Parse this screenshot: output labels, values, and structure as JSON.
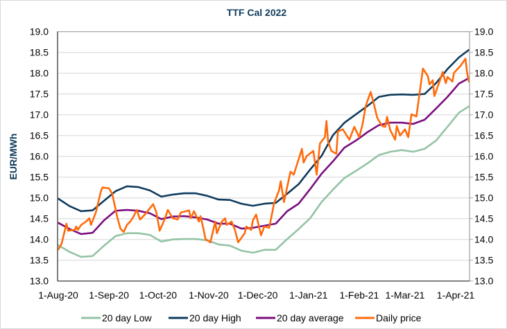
{
  "chart_data": {
    "type": "line",
    "title": "TTF Cal 2022",
    "ylabel": "EUR/MWh",
    "xlabel": "",
    "ylim": [
      13.0,
      19.0
    ],
    "xlim": [
      "2020-08-01",
      "2021-04-09"
    ],
    "y_ticks": [
      "13.0",
      "13.5",
      "14.0",
      "14.5",
      "15.0",
      "15.5",
      "16.0",
      "16.5",
      "17.0",
      "17.5",
      "18.0",
      "18.5",
      "19.0"
    ],
    "x_ticks": [
      {
        "date": "2020-08-01",
        "label": "1-Aug-20"
      },
      {
        "date": "2020-09-01",
        "label": "1-Sep-20"
      },
      {
        "date": "2020-10-01",
        "label": "1-Oct-20"
      },
      {
        "date": "2020-11-01",
        "label": "1-Nov-20"
      },
      {
        "date": "2020-12-01",
        "label": "1-Dec-20"
      },
      {
        "date": "2021-01-01",
        "label": "1-Jan-21"
      },
      {
        "date": "2021-02-01",
        "label": "1-Feb-21"
      },
      {
        "date": "2021-03-01",
        "label": "1-Mar-21"
      },
      {
        "date": "2021-04-01",
        "label": "1-Apr-21"
      }
    ],
    "secondary_y_axis": true,
    "grid": "horizontal",
    "legend_position": "bottom",
    "series": [
      {
        "name": "20 day Low",
        "color": "#93c3a5",
        "points": [
          [
            "2020-08-01",
            13.86
          ],
          [
            "2020-08-08",
            13.7
          ],
          [
            "2020-08-15",
            13.58
          ],
          [
            "2020-08-22",
            13.6
          ],
          [
            "2020-08-29",
            13.85
          ],
          [
            "2020-09-05",
            14.08
          ],
          [
            "2020-09-12",
            14.15
          ],
          [
            "2020-09-19",
            14.15
          ],
          [
            "2020-09-26",
            14.11
          ],
          [
            "2020-10-03",
            13.95
          ],
          [
            "2020-10-10",
            14.0
          ],
          [
            "2020-10-17",
            14.01
          ],
          [
            "2020-10-24",
            14.01
          ],
          [
            "2020-10-31",
            13.98
          ],
          [
            "2020-11-07",
            13.88
          ],
          [
            "2020-11-14",
            13.85
          ],
          [
            "2020-11-21",
            13.73
          ],
          [
            "2020-11-28",
            13.68
          ],
          [
            "2020-12-05",
            13.75
          ],
          [
            "2020-12-12",
            13.75
          ],
          [
            "2020-12-19",
            14.01
          ],
          [
            "2020-12-26",
            14.25
          ],
          [
            "2021-01-02",
            14.51
          ],
          [
            "2021-01-09",
            14.9
          ],
          [
            "2021-01-16",
            15.2
          ],
          [
            "2021-01-23",
            15.48
          ],
          [
            "2021-01-30",
            15.65
          ],
          [
            "2021-02-06",
            15.83
          ],
          [
            "2021-02-13",
            16.03
          ],
          [
            "2021-02-20",
            16.11
          ],
          [
            "2021-02-27",
            16.15
          ],
          [
            "2021-03-06",
            16.11
          ],
          [
            "2021-03-13",
            16.18
          ],
          [
            "2021-03-20",
            16.38
          ],
          [
            "2021-03-27",
            16.71
          ],
          [
            "2021-04-03",
            17.05
          ],
          [
            "2021-04-09",
            17.2
          ]
        ]
      },
      {
        "name": "20 day High",
        "color": "#0e3a5c",
        "points": [
          [
            "2020-08-01",
            14.98
          ],
          [
            "2020-08-08",
            14.8
          ],
          [
            "2020-08-15",
            14.68
          ],
          [
            "2020-08-22",
            14.7
          ],
          [
            "2020-08-29",
            14.93
          ],
          [
            "2020-09-05",
            15.16
          ],
          [
            "2020-09-12",
            15.28
          ],
          [
            "2020-09-19",
            15.26
          ],
          [
            "2020-09-26",
            15.18
          ],
          [
            "2020-10-03",
            15.03
          ],
          [
            "2020-10-10",
            15.08
          ],
          [
            "2020-10-17",
            15.11
          ],
          [
            "2020-10-24",
            15.11
          ],
          [
            "2020-10-31",
            15.05
          ],
          [
            "2020-11-07",
            14.96
          ],
          [
            "2020-11-14",
            14.95
          ],
          [
            "2020-11-21",
            14.86
          ],
          [
            "2020-11-28",
            14.81
          ],
          [
            "2020-12-05",
            14.86
          ],
          [
            "2020-12-12",
            14.88
          ],
          [
            "2020-12-19",
            15.1
          ],
          [
            "2020-12-26",
            15.33
          ],
          [
            "2021-01-02",
            15.68
          ],
          [
            "2021-01-09",
            16.01
          ],
          [
            "2021-01-16",
            16.51
          ],
          [
            "2021-01-23",
            16.81
          ],
          [
            "2021-01-30",
            17.01
          ],
          [
            "2021-02-06",
            17.21
          ],
          [
            "2021-02-13",
            17.43
          ],
          [
            "2021-02-20",
            17.48
          ],
          [
            "2021-02-27",
            17.49
          ],
          [
            "2021-03-06",
            17.48
          ],
          [
            "2021-03-13",
            17.5
          ],
          [
            "2021-03-20",
            17.76
          ],
          [
            "2021-03-27",
            18.1
          ],
          [
            "2021-04-03",
            18.38
          ],
          [
            "2021-04-09",
            18.56
          ]
        ]
      },
      {
        "name": "20 day average",
        "color": "#7a0c7e",
        "points": [
          [
            "2020-08-01",
            14.4
          ],
          [
            "2020-08-08",
            14.25
          ],
          [
            "2020-08-15",
            14.13
          ],
          [
            "2020-08-22",
            14.16
          ],
          [
            "2020-08-29",
            14.46
          ],
          [
            "2020-09-05",
            14.69
          ],
          [
            "2020-09-12",
            14.71
          ],
          [
            "2020-09-19",
            14.69
          ],
          [
            "2020-09-26",
            14.63
          ],
          [
            "2020-10-03",
            14.49
          ],
          [
            "2020-10-10",
            14.55
          ],
          [
            "2020-10-17",
            14.56
          ],
          [
            "2020-10-24",
            14.53
          ],
          [
            "2020-10-31",
            14.48
          ],
          [
            "2020-11-07",
            14.38
          ],
          [
            "2020-11-14",
            14.38
          ],
          [
            "2020-11-21",
            14.26
          ],
          [
            "2020-11-28",
            14.28
          ],
          [
            "2020-12-05",
            14.33
          ],
          [
            "2020-12-12",
            14.38
          ],
          [
            "2020-12-19",
            14.68
          ],
          [
            "2020-12-26",
            14.86
          ],
          [
            "2021-01-02",
            15.21
          ],
          [
            "2021-01-09",
            15.58
          ],
          [
            "2021-01-16",
            15.88
          ],
          [
            "2021-01-23",
            16.21
          ],
          [
            "2021-01-30",
            16.38
          ],
          [
            "2021-02-06",
            16.58
          ],
          [
            "2021-02-13",
            16.75
          ],
          [
            "2021-02-20",
            16.81
          ],
          [
            "2021-02-27",
            16.81
          ],
          [
            "2021-03-06",
            16.78
          ],
          [
            "2021-03-13",
            16.88
          ],
          [
            "2021-03-20",
            17.15
          ],
          [
            "2021-03-27",
            17.43
          ],
          [
            "2021-04-03",
            17.75
          ],
          [
            "2021-04-09",
            17.88
          ]
        ]
      },
      {
        "name": "Daily price",
        "color": "#ff6a0a",
        "points": [
          [
            "2020-08-01",
            13.76
          ],
          [
            "2020-08-03",
            13.89
          ],
          [
            "2020-08-06",
            14.38
          ],
          [
            "2020-08-07",
            14.21
          ],
          [
            "2020-08-11",
            14.23
          ],
          [
            "2020-08-12",
            14.31
          ],
          [
            "2020-08-13",
            14.23
          ],
          [
            "2020-08-15",
            14.35
          ],
          [
            "2020-08-18",
            14.43
          ],
          [
            "2020-08-20",
            14.51
          ],
          [
            "2020-08-21",
            14.35
          ],
          [
            "2020-08-24",
            14.65
          ],
          [
            "2020-08-26",
            14.98
          ],
          [
            "2020-08-27",
            15.15
          ],
          [
            "2020-08-28",
            15.25
          ],
          [
            "2020-09-01",
            15.23
          ],
          [
            "2020-09-03",
            15.1
          ],
          [
            "2020-09-06",
            14.55
          ],
          [
            "2020-09-08",
            14.26
          ],
          [
            "2020-09-10",
            14.18
          ],
          [
            "2020-09-12",
            14.35
          ],
          [
            "2020-09-14",
            14.43
          ],
          [
            "2020-09-16",
            14.55
          ],
          [
            "2020-09-18",
            14.71
          ],
          [
            "2020-09-20",
            14.48
          ],
          [
            "2020-09-23",
            14.6
          ],
          [
            "2020-09-28",
            14.85
          ],
          [
            "2020-09-30",
            14.65
          ],
          [
            "2020-10-02",
            14.21
          ],
          [
            "2020-10-05",
            14.48
          ],
          [
            "2020-10-07",
            14.71
          ],
          [
            "2020-10-10",
            14.51
          ],
          [
            "2020-10-13",
            14.48
          ],
          [
            "2020-10-15",
            14.65
          ],
          [
            "2020-10-20",
            14.7
          ],
          [
            "2020-10-21",
            14.51
          ],
          [
            "2020-10-23",
            14.68
          ],
          [
            "2020-10-26",
            14.43
          ],
          [
            "2020-10-27",
            14.56
          ],
          [
            "2020-10-29",
            14.21
          ],
          [
            "2020-10-30",
            14.01
          ],
          [
            "2020-11-02",
            13.93
          ],
          [
            "2020-11-05",
            14.43
          ],
          [
            "2020-11-06",
            14.15
          ],
          [
            "2020-11-09",
            14.43
          ],
          [
            "2020-11-11",
            14.51
          ],
          [
            "2020-11-12",
            14.35
          ],
          [
            "2020-11-15",
            14.43
          ],
          [
            "2020-11-17",
            14.23
          ],
          [
            "2020-11-19",
            13.93
          ],
          [
            "2020-11-23",
            14.15
          ],
          [
            "2020-11-24",
            14.31
          ],
          [
            "2020-11-27",
            14.23
          ],
          [
            "2020-11-28",
            14.46
          ],
          [
            "2020-11-30",
            14.6
          ],
          [
            "2020-12-03",
            14.1
          ],
          [
            "2020-12-05",
            14.31
          ],
          [
            "2020-12-08",
            14.28
          ],
          [
            "2020-12-11",
            14.88
          ],
          [
            "2020-12-14",
            15.18
          ],
          [
            "2020-12-15",
            15.4
          ],
          [
            "2020-12-17",
            14.9
          ],
          [
            "2020-12-21",
            15.63
          ],
          [
            "2020-12-23",
            15.56
          ],
          [
            "2020-12-28",
            16.18
          ],
          [
            "2020-12-29",
            15.85
          ],
          [
            "2020-12-31",
            16.01
          ],
          [
            "2021-01-04",
            16.13
          ],
          [
            "2021-01-06",
            15.56
          ],
          [
            "2021-01-08",
            16.31
          ],
          [
            "2021-01-11",
            16.46
          ],
          [
            "2021-01-12",
            16.85
          ],
          [
            "2021-01-13",
            16.35
          ],
          [
            "2021-01-15",
            16.13
          ],
          [
            "2021-01-18",
            16.06
          ],
          [
            "2021-01-19",
            16.6
          ],
          [
            "2021-01-22",
            16.65
          ],
          [
            "2021-01-26",
            16.4
          ],
          [
            "2021-01-29",
            16.71
          ],
          [
            "2021-02-01",
            16.46
          ],
          [
            "2021-02-03",
            16.76
          ],
          [
            "2021-02-05",
            17.21
          ],
          [
            "2021-02-08",
            17.55
          ],
          [
            "2021-02-10",
            17.26
          ],
          [
            "2021-02-12",
            16.93
          ],
          [
            "2021-02-15",
            16.73
          ],
          [
            "2021-02-17",
            16.71
          ],
          [
            "2021-02-18",
            16.95
          ],
          [
            "2021-02-20",
            16.63
          ],
          [
            "2021-02-23",
            16.4
          ],
          [
            "2021-02-24",
            16.73
          ],
          [
            "2021-02-26",
            16.5
          ],
          [
            "2021-03-01",
            16.65
          ],
          [
            "2021-03-03",
            16.46
          ],
          [
            "2021-03-05",
            17.01
          ],
          [
            "2021-03-08",
            16.96
          ],
          [
            "2021-03-12",
            18.11
          ],
          [
            "2021-03-15",
            17.93
          ],
          [
            "2021-03-16",
            17.73
          ],
          [
            "2021-03-18",
            17.83
          ],
          [
            "2021-03-19",
            17.45
          ],
          [
            "2021-03-23",
            17.9
          ],
          [
            "2021-03-24",
            18.03
          ],
          [
            "2021-03-26",
            17.76
          ],
          [
            "2021-03-27",
            17.91
          ],
          [
            "2021-03-30",
            17.8
          ],
          [
            "2021-03-31",
            18.01
          ],
          [
            "2021-04-04",
            18.18
          ],
          [
            "2021-04-07",
            18.35
          ],
          [
            "2021-04-08",
            18.01
          ],
          [
            "2021-04-09",
            17.8
          ]
        ]
      }
    ]
  }
}
